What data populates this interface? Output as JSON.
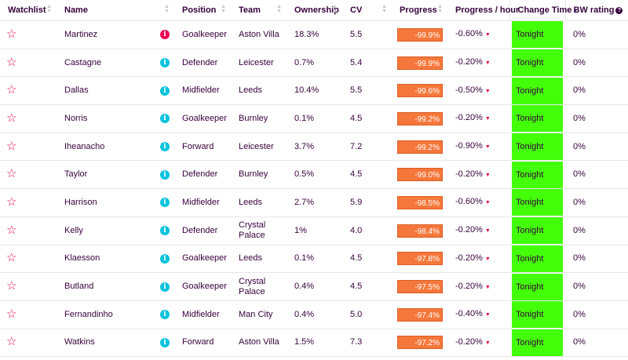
{
  "headers": {
    "watchlist": "Watchlist",
    "name": "Name",
    "position": "Position",
    "team": "Team",
    "ownership": "Ownership",
    "cv": "CV",
    "progress": "Progress",
    "progress_hour": "Progress / hour",
    "change_time": "Change Time",
    "bw_rating": "BW rating"
  },
  "icons": {
    "watch": "star-outline-icon",
    "info": "info-circle-icon",
    "sort": "sort-icon",
    "trend": "caret-down-icon",
    "help": "question-circle-icon"
  },
  "colors": {
    "progress_bar": "#f5773b",
    "change_time_bg": "#43ff0a",
    "info_red": "#e90052",
    "info_cyan": "#05c3dd",
    "star": "#e90052"
  },
  "rows": [
    {
      "name": "Martinez",
      "info_color": "#e90052",
      "position": "Goalkeeper",
      "team": "Aston Villa",
      "ownership": "18.3%",
      "cv": "5.5",
      "progress": "-99.9%",
      "progress_hour": "-0.60%",
      "change_time": "Tonight",
      "bw_rating": "0%"
    },
    {
      "name": "Castagne",
      "info_color": "#05c3dd",
      "position": "Defender",
      "team": "Leicester",
      "ownership": "0.7%",
      "cv": "5.4",
      "progress": "-99.9%",
      "progress_hour": "-0.20%",
      "change_time": "Tonight",
      "bw_rating": "0%"
    },
    {
      "name": "Dallas",
      "info_color": "#05c3dd",
      "position": "Midfielder",
      "team": "Leeds",
      "ownership": "10.4%",
      "cv": "5.5",
      "progress": "-99.6%",
      "progress_hour": "-0.50%",
      "change_time": "Tonight",
      "bw_rating": "0%"
    },
    {
      "name": "Norris",
      "info_color": "#05c3dd",
      "position": "Goalkeeper",
      "team": "Burnley",
      "ownership": "0.1%",
      "cv": "4.5",
      "progress": "-99.2%",
      "progress_hour": "-0.20%",
      "change_time": "Tonight",
      "bw_rating": "0%"
    },
    {
      "name": "Iheanacho",
      "info_color": "#05c3dd",
      "position": "Forward",
      "team": "Leicester",
      "ownership": "3.7%",
      "cv": "7.2",
      "progress": "-99.2%",
      "progress_hour": "-0.90%",
      "change_time": "Tonight",
      "bw_rating": "0%"
    },
    {
      "name": "Taylor",
      "info_color": "#05c3dd",
      "position": "Defender",
      "team": "Burnley",
      "ownership": "0.5%",
      "cv": "4.5",
      "progress": "-99.0%",
      "progress_hour": "-0.20%",
      "change_time": "Tonight",
      "bw_rating": "0%"
    },
    {
      "name": "Harrison",
      "info_color": "#05c3dd",
      "position": "Midfielder",
      "team": "Leeds",
      "ownership": "2.7%",
      "cv": "5.9",
      "progress": "-98.5%",
      "progress_hour": "-0.60%",
      "change_time": "Tonight",
      "bw_rating": "0%"
    },
    {
      "name": "Kelly",
      "info_color": "#05c3dd",
      "position": "Defender",
      "team": "Crystal Palace",
      "ownership": "1%",
      "cv": "4.0",
      "progress": "-98.4%",
      "progress_hour": "-0.20%",
      "change_time": "Tonight",
      "bw_rating": "0%"
    },
    {
      "name": "Klaesson",
      "info_color": "#05c3dd",
      "position": "Goalkeeper",
      "team": "Leeds",
      "ownership": "0.1%",
      "cv": "4.5",
      "progress": "-97.8%",
      "progress_hour": "-0.20%",
      "change_time": "Tonight",
      "bw_rating": "0%"
    },
    {
      "name": "Butland",
      "info_color": "#05c3dd",
      "position": "Goalkeeper",
      "team": "Crystal Palace",
      "ownership": "0.4%",
      "cv": "4.5",
      "progress": "-97.5%",
      "progress_hour": "-0.20%",
      "change_time": "Tonight",
      "bw_rating": "0%"
    },
    {
      "name": "Fernandinho",
      "info_color": "#05c3dd",
      "position": "Midfielder",
      "team": "Man City",
      "ownership": "0.4%",
      "cv": "5.0",
      "progress": "-97.4%",
      "progress_hour": "-0.40%",
      "change_time": "Tonight",
      "bw_rating": "0%"
    },
    {
      "name": "Watkins",
      "info_color": "#05c3dd",
      "position": "Forward",
      "team": "Aston Villa",
      "ownership": "1.5%",
      "cv": "7.3",
      "progress": "-97.2%",
      "progress_hour": "-0.20%",
      "change_time": "Tonight",
      "bw_rating": "0%"
    }
  ]
}
